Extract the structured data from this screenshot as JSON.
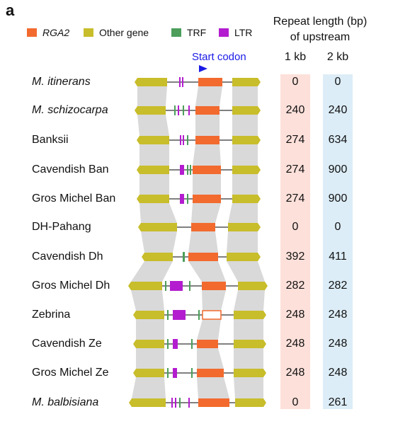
{
  "panel_label": "a",
  "legend": [
    {
      "label": "RGA2",
      "color": "#f26a2e",
      "italic": true,
      "icon": "rga2-swatch"
    },
    {
      "label": "Other gene",
      "color": "#c8bd2a",
      "italic": false,
      "icon": "other-gene-swatch"
    },
    {
      "label": "TRF",
      "color": "#4c9e5a",
      "italic": false,
      "icon": "trf-swatch"
    },
    {
      "label": "LTR",
      "color": "#b31ccf",
      "italic": false,
      "icon": "ltr-swatch"
    }
  ],
  "start_codon_label": "Start codon",
  "header": {
    "title_line1": "Repeat length (bp)",
    "title_line2": "of upstream",
    "col1": "1 kb",
    "col2": "2 kb"
  },
  "colors": {
    "col1_bg": "#fde0da",
    "col2_bg": "#dcedf7",
    "connector": "#d9d9d9",
    "line": "#808080",
    "start_codon": "#1a1ae6"
  },
  "rows": [
    {
      "name": "M. itinerans",
      "italic": true,
      "kb1": "0",
      "kb2": "0"
    },
    {
      "name": "M. schizocarpa",
      "italic": true,
      "kb1": "240",
      "kb2": "240"
    },
    {
      "name": "Banksii",
      "italic": false,
      "kb1": "274",
      "kb2": "634"
    },
    {
      "name": "Cavendish Ban",
      "italic": false,
      "kb1": "274",
      "kb2": "900"
    },
    {
      "name": "Gros Michel Ban",
      "italic": false,
      "kb1": "274",
      "kb2": "900"
    },
    {
      "name": "DH-Pahang",
      "italic": false,
      "kb1": "0",
      "kb2": "0"
    },
    {
      "name": "Cavendish Dh",
      "italic": false,
      "kb1": "392",
      "kb2": "411"
    },
    {
      "name": "Gros Michel Dh",
      "italic": false,
      "kb1": "282",
      "kb2": "282"
    },
    {
      "name": "Zebrina",
      "italic": false,
      "kb1": "248",
      "kb2": "248"
    },
    {
      "name": "Cavendish Ze",
      "italic": false,
      "kb1": "248",
      "kb2": "248"
    },
    {
      "name": "Gros Michel Ze",
      "italic": false,
      "kb1": "248",
      "kb2": "248"
    },
    {
      "name": "M. balbisiana",
      "italic": true,
      "kb1": "0",
      "kb2": "261"
    }
  ]
}
